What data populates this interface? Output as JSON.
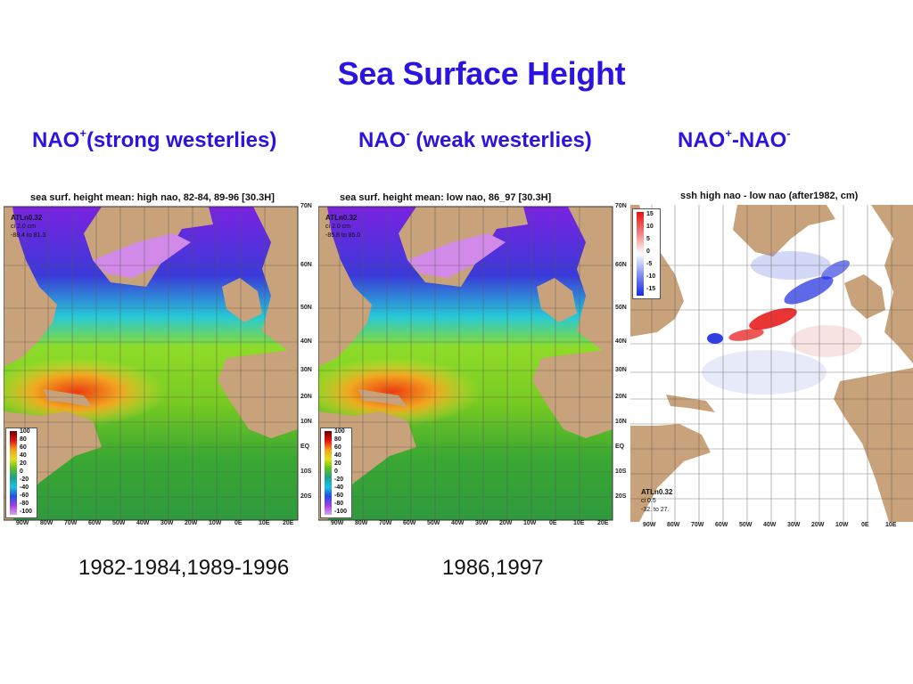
{
  "slide": {
    "title": "Sea Surface Height",
    "subtitles": [
      {
        "base1": "NAO",
        "sup1": "+",
        "rest": "(strong westerlies)",
        "base2": "",
        "sup2": ""
      },
      {
        "base1": "NAO",
        "sup1": "-",
        "rest": " (weak westerlies)",
        "base2": "",
        "sup2": ""
      },
      {
        "base1": "NAO",
        "sup1": "+",
        "rest": "-NAO",
        "base2": "",
        "sup2": "-"
      }
    ],
    "captions": [
      "1982-1984,1989-1996",
      "1986,1997"
    ]
  },
  "panels": [
    {
      "heading": "sea surf. height  mean: high nao, 82-84, 89-96 [30.3H]",
      "model": "ATLn0.32",
      "ci": "ci 2.0 cm",
      "range": "-88.4 to 81.3",
      "colorbar": [
        "100",
        "80",
        "60",
        "40",
        "20",
        "0",
        "-20",
        "-40",
        "-60",
        "-80",
        "-100"
      ]
    },
    {
      "heading": "sea surf. height  mean: low nao, 86_97 [30.3H]",
      "model": "ATLn0.32",
      "ci": "ci 2.0 cm",
      "range": "-85.8 to 85.0",
      "colorbar": [
        "100",
        "80",
        "60",
        "40",
        "20",
        "0",
        "-20",
        "-40",
        "-60",
        "-80",
        "-100"
      ]
    },
    {
      "heading": "ssh high nao - low nao (after1982, cm)",
      "model": "ATLn0.32",
      "ci": "ci 0.5",
      "range": "-32. to 27.",
      "colorbar": [
        "15",
        "10",
        "5",
        "0",
        "-5",
        "-10",
        "-15"
      ]
    }
  ],
  "axes": {
    "lat_labels": [
      "70N",
      "60N",
      "50N",
      "40N",
      "30N",
      "20N",
      "10N",
      "EQ",
      "10S",
      "20S"
    ],
    "lon_labels": [
      "90W",
      "80W",
      "70W",
      "60W",
      "50W",
      "40W",
      "30W",
      "20W",
      "10W",
      "0E",
      "10E",
      "20E"
    ]
  },
  "colors": {
    "title": "#2b14e0",
    "land": "#c8a27a",
    "ssh_high": "#e03a1a",
    "ssh_low": "#a040e8",
    "diff_pos": "#e81010",
    "diff_neg": "#1a2ae0"
  }
}
